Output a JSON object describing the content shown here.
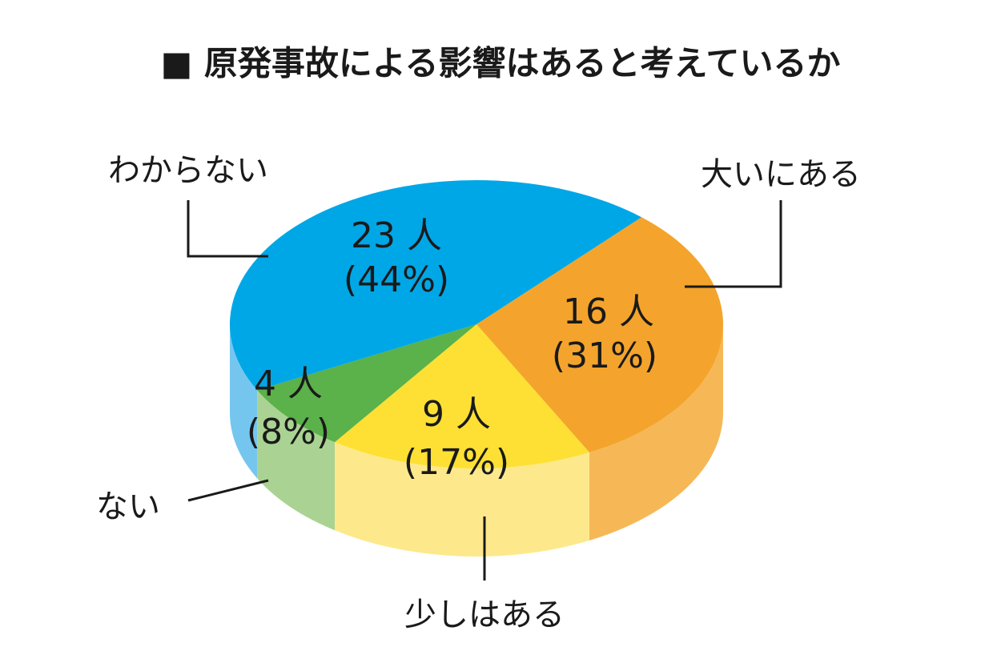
{
  "chart_data": {
    "type": "pie3d",
    "title": "■ 原発事故による影響はあると考えているか",
    "categories": [
      "大いにある",
      "少しはある",
      "ない",
      "わからない"
    ],
    "values": [
      16,
      9,
      4,
      23
    ],
    "value_labels": [
      "16 人",
      "9 人",
      "4 人",
      "23 人"
    ],
    "percent_labels": [
      "(31%)",
      "(17%)",
      "(8%)",
      "(44%)"
    ],
    "colors": [
      "#f4a42c",
      "#fde033",
      "#5bb14a",
      "#00a7e6"
    ],
    "side_colors": [
      "#f6b856",
      "#fde98c",
      "#aad393",
      "#74c6ef"
    ]
  }
}
